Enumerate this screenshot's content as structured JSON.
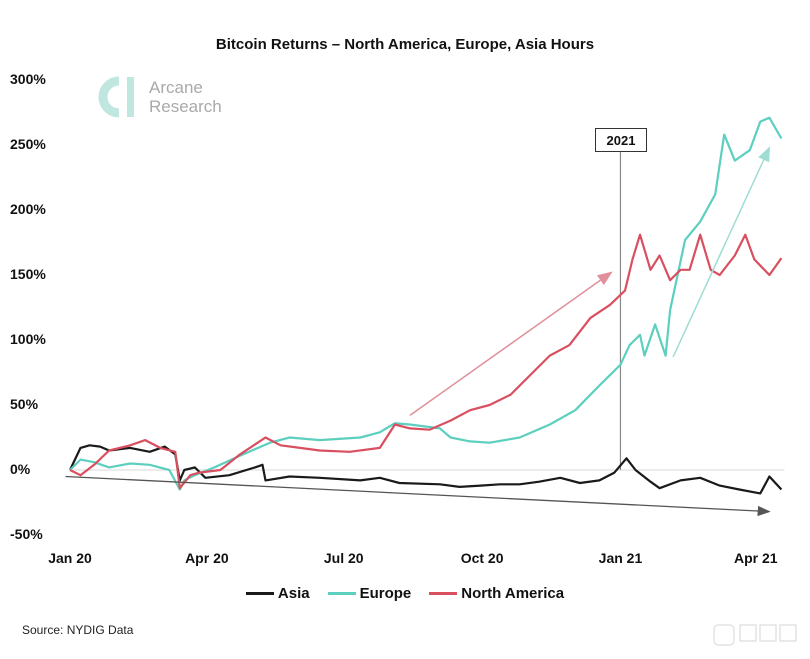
{
  "chart_data": {
    "type": "line",
    "title": "Bitcoin Returns – North America, Europe, Asia Hours",
    "xlabel": "",
    "ylabel": "",
    "ylim": [
      -50,
      300
    ],
    "xlim": [
      "2020-01-01",
      "2021-04-20"
    ],
    "y_ticks": [
      {
        "value": 300,
        "label": "300%"
      },
      {
        "value": 250,
        "label": "250%"
      },
      {
        "value": 200,
        "label": "200%"
      },
      {
        "value": 150,
        "label": "150%"
      },
      {
        "value": 100,
        "label": "100%"
      },
      {
        "value": 50,
        "label": "50%"
      },
      {
        "value": 0,
        "label": "0%"
      },
      {
        "value": -50,
        "label": "-50%"
      }
    ],
    "x_ticks": [
      {
        "date": "2020-01-01",
        "label": "Jan 20"
      },
      {
        "date": "2020-04-01",
        "label": "Apr 20"
      },
      {
        "date": "2020-07-01",
        "label": "Jul 20"
      },
      {
        "date": "2020-10-01",
        "label": "Oct 20"
      },
      {
        "date": "2021-01-01",
        "label": "Jan 21"
      },
      {
        "date": "2021-04-01",
        "label": "Apr 21"
      }
    ],
    "grid": false,
    "legend_position": "bottom",
    "annotation_label": "2021",
    "annotation_date": "2021-01-01",
    "series": [
      {
        "name": "Asia",
        "color": "#1a1a1a",
        "points": [
          [
            "2020-01-01",
            0
          ],
          [
            "2020-01-08",
            17
          ],
          [
            "2020-01-14",
            19
          ],
          [
            "2020-01-21",
            18
          ],
          [
            "2020-01-27",
            15
          ],
          [
            "2020-02-10",
            17
          ],
          [
            "2020-02-23",
            14
          ],
          [
            "2020-03-04",
            18
          ],
          [
            "2020-03-11",
            12
          ],
          [
            "2020-03-14",
            -8
          ],
          [
            "2020-03-17",
            0
          ],
          [
            "2020-03-24",
            2
          ],
          [
            "2020-03-31",
            -6
          ],
          [
            "2020-04-16",
            -4
          ],
          [
            "2020-05-03",
            2
          ],
          [
            "2020-05-08",
            4
          ],
          [
            "2020-05-10",
            -8
          ],
          [
            "2020-05-26",
            -5
          ],
          [
            "2020-06-15",
            -6
          ],
          [
            "2020-07-12",
            -8
          ],
          [
            "2020-07-25",
            -6
          ],
          [
            "2020-08-07",
            -10
          ],
          [
            "2020-09-03",
            -11
          ],
          [
            "2020-09-16",
            -13
          ],
          [
            "2020-09-30",
            -12
          ],
          [
            "2020-10-13",
            -11
          ],
          [
            "2020-10-26",
            -11
          ],
          [
            "2020-11-08",
            -9
          ],
          [
            "2020-11-22",
            -6
          ],
          [
            "2020-12-05",
            -10
          ],
          [
            "2020-12-18",
            -8
          ],
          [
            "2020-12-28",
            -2
          ],
          [
            "2021-01-05",
            9
          ],
          [
            "2021-01-11",
            0
          ],
          [
            "2021-01-21",
            -9
          ],
          [
            "2021-01-27",
            -14
          ],
          [
            "2021-02-10",
            -8
          ],
          [
            "2021-02-23",
            -6
          ],
          [
            "2021-03-08",
            -12
          ],
          [
            "2021-03-21",
            -15
          ],
          [
            "2021-04-04",
            -18
          ],
          [
            "2021-04-10",
            -5
          ],
          [
            "2021-04-18",
            -15
          ]
        ]
      },
      {
        "name": "Europe",
        "color": "#5ccfbf",
        "points": [
          [
            "2020-01-01",
            0
          ],
          [
            "2020-01-08",
            8
          ],
          [
            "2020-01-17",
            6
          ],
          [
            "2020-01-27",
            2
          ],
          [
            "2020-02-10",
            5
          ],
          [
            "2020-02-23",
            4
          ],
          [
            "2020-03-07",
            0
          ],
          [
            "2020-03-14",
            -15
          ],
          [
            "2020-03-17",
            -8
          ],
          [
            "2020-03-24",
            -4
          ],
          [
            "2020-04-06",
            2
          ],
          [
            "2020-04-23",
            11
          ],
          [
            "2020-05-13",
            21
          ],
          [
            "2020-05-26",
            25
          ],
          [
            "2020-06-15",
            23
          ],
          [
            "2020-07-12",
            25
          ],
          [
            "2020-07-25",
            29
          ],
          [
            "2020-08-04",
            36
          ],
          [
            "2020-08-14",
            35
          ],
          [
            "2020-09-03",
            32
          ],
          [
            "2020-09-10",
            25
          ],
          [
            "2020-09-23",
            22
          ],
          [
            "2020-10-06",
            21
          ],
          [
            "2020-10-26",
            25
          ],
          [
            "2020-11-15",
            35
          ],
          [
            "2020-12-02",
            46
          ],
          [
            "2020-12-18",
            65
          ],
          [
            "2021-01-01",
            81
          ],
          [
            "2021-01-07",
            96
          ],
          [
            "2021-01-14",
            104
          ],
          [
            "2021-01-17",
            88
          ],
          [
            "2021-01-24",
            112
          ],
          [
            "2021-01-31",
            88
          ],
          [
            "2021-02-03",
            123
          ],
          [
            "2021-02-13",
            177
          ],
          [
            "2021-02-23",
            191
          ],
          [
            "2021-03-05",
            212
          ],
          [
            "2021-03-11",
            258
          ],
          [
            "2021-03-18",
            238
          ],
          [
            "2021-03-28",
            246
          ],
          [
            "2021-04-04",
            268
          ],
          [
            "2021-04-10",
            271
          ],
          [
            "2021-04-18",
            255
          ]
        ]
      },
      {
        "name": "North America",
        "color": "#d94f5f",
        "points": [
          [
            "2020-01-01",
            0
          ],
          [
            "2020-01-08",
            -4
          ],
          [
            "2020-01-17",
            4
          ],
          [
            "2020-01-27",
            15
          ],
          [
            "2020-02-10",
            19
          ],
          [
            "2020-02-20",
            23
          ],
          [
            "2020-03-01",
            17
          ],
          [
            "2020-03-11",
            14
          ],
          [
            "2020-03-14",
            -14
          ],
          [
            "2020-03-21",
            -4
          ],
          [
            "2020-03-27",
            -2
          ],
          [
            "2020-04-10",
            0
          ],
          [
            "2020-04-23",
            12
          ],
          [
            "2020-05-10",
            25
          ],
          [
            "2020-05-20",
            19
          ],
          [
            "2020-06-02",
            17
          ],
          [
            "2020-06-15",
            15
          ],
          [
            "2020-07-05",
            14
          ],
          [
            "2020-07-25",
            17
          ],
          [
            "2020-08-04",
            35
          ],
          [
            "2020-08-14",
            32
          ],
          [
            "2020-08-27",
            31
          ],
          [
            "2020-09-10",
            38
          ],
          [
            "2020-09-23",
            46
          ],
          [
            "2020-10-06",
            50
          ],
          [
            "2020-10-20",
            58
          ],
          [
            "2020-11-02",
            73
          ],
          [
            "2020-11-15",
            88
          ],
          [
            "2020-11-28",
            96
          ],
          [
            "2020-12-12",
            117
          ],
          [
            "2020-12-25",
            127
          ],
          [
            "2021-01-04",
            138
          ],
          [
            "2021-01-09",
            162
          ],
          [
            "2021-01-14",
            181
          ],
          [
            "2021-01-21",
            154
          ],
          [
            "2021-01-27",
            165
          ],
          [
            "2021-02-03",
            146
          ],
          [
            "2021-02-10",
            154
          ],
          [
            "2021-02-16",
            154
          ],
          [
            "2021-02-23",
            181
          ],
          [
            "2021-03-02",
            154
          ],
          [
            "2021-03-08",
            150
          ],
          [
            "2021-03-18",
            165
          ],
          [
            "2021-03-25",
            181
          ],
          [
            "2021-03-31",
            162
          ],
          [
            "2021-04-10",
            150
          ],
          [
            "2021-04-18",
            163
          ]
        ]
      }
    ]
  },
  "logo": {
    "line1": "Arcane",
    "line2": "Research"
  },
  "source": "Source: NYDIG Data"
}
